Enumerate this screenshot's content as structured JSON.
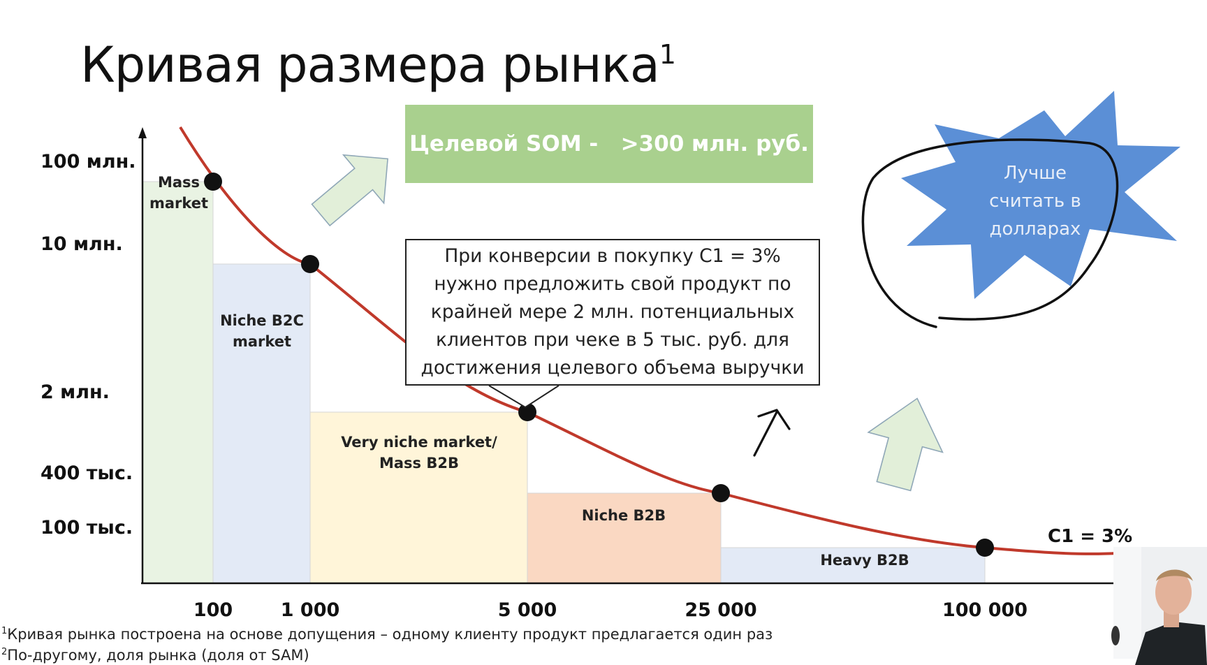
{
  "slide": {
    "title": "Кривая размера рынка",
    "title_sup": "1",
    "som_box": "Целевой SOM -   >300 млн. руб.",
    "callout_lines": [
      "При конверсии в покупку С1 = 3%",
      "нужно предложить свой продукт по",
      "крайней мере 2 млн. потенциальных",
      "клиентов при чеке в 5 тыс. руб. для",
      "достижения целевого объема выручки"
    ],
    "star_text": [
      "Лучше",
      "считать в",
      "долларах"
    ],
    "footnotes": [
      {
        "sup": "1",
        "text": "Кривая рынка построена на основе допущения – одному клиенту продукт предлагается один раз"
      },
      {
        "sup": "2",
        "text": "По-другому, доля рынка (доля от SAM)"
      }
    ]
  },
  "colors": {
    "curve": "#c0392b",
    "som_fill": "#a9d08e",
    "star_fill": "#5b8fd6",
    "arrow_fill": "#e2efd9",
    "arrow_stroke": "#8fa7b7"
  },
  "chart_data": {
    "type": "line",
    "curve_label": "С1 =  3%",
    "y_ticks": [
      {
        "value": 100000000,
        "label": "100 млн."
      },
      {
        "value": 10000000,
        "label": "10 млн."
      },
      {
        "value": 2000000,
        "label": "2 млн."
      },
      {
        "value": 400000,
        "label": "400 тыс."
      },
      {
        "value": 100000,
        "label": "100 тыс."
      }
    ],
    "x_ticks": [
      {
        "value": 100,
        "label": "100"
      },
      {
        "value": 1000,
        "label": "1 000"
      },
      {
        "value": 5000,
        "label": "5 000"
      },
      {
        "value": 25000,
        "label": "25 000"
      },
      {
        "value": 100000,
        "label": "100 000"
      }
    ],
    "points": [
      {
        "x": 100,
        "y": 100000000
      },
      {
        "x": 1000,
        "y": 10000000
      },
      {
        "x": 5000,
        "y": 2000000
      },
      {
        "x": 25000,
        "y": 400000
      },
      {
        "x": 100000,
        "y": 100000
      }
    ],
    "segments": [
      {
        "label": [
          "Mass",
          "market"
        ],
        "x_to": 100,
        "y_top": 100000000,
        "color": "#e2efd9"
      },
      {
        "label": [
          "Niche B2C",
          "market"
        ],
        "x_to": 1000,
        "y_top": 10000000,
        "color": "#dae3f3"
      },
      {
        "label": [
          "Very niche market/",
          "Mass B2B"
        ],
        "x_to": 5000,
        "y_top": 2000000,
        "color": "#fff2cc"
      },
      {
        "label": [
          "Niche B2B"
        ],
        "x_to": 25000,
        "y_top": 400000,
        "color": "#f8cbad"
      },
      {
        "label": [
          "Heavy B2B"
        ],
        "x_to": 100000,
        "y_top": 100000,
        "color": "#dae3f3"
      }
    ]
  }
}
